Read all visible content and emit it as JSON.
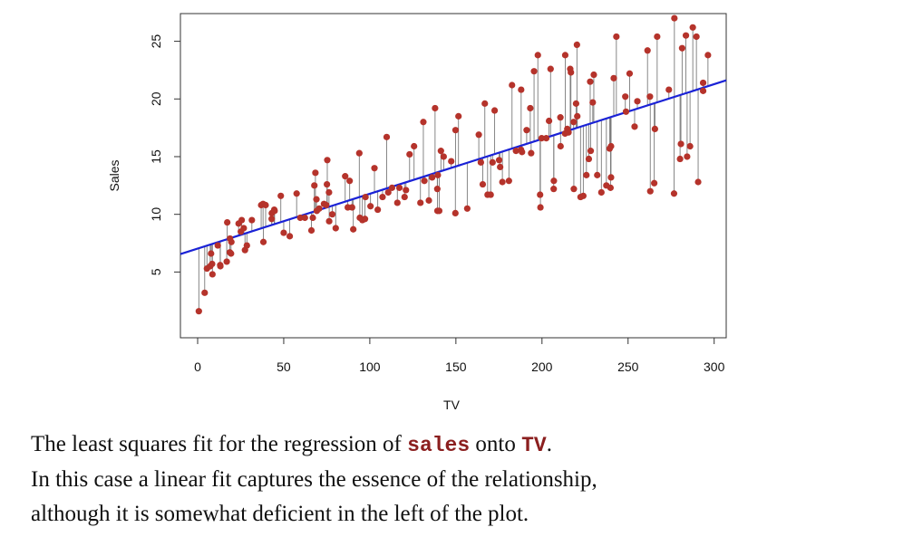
{
  "chart_data": {
    "type": "scatter",
    "title": "",
    "xlabel": "TV",
    "ylabel": "Sales",
    "xlim": [
      -10,
      307
    ],
    "ylim": [
      -0.7,
      27.4
    ],
    "xticks": [
      0,
      50,
      100,
      150,
      200,
      250,
      300
    ],
    "yticks": [
      5,
      10,
      15,
      20,
      25
    ],
    "grid": false,
    "legend": "none",
    "point_color": "#b5332b",
    "residual_color": "#7a7a7a",
    "fit_color": "#1a22d6",
    "fit_line": {
      "intercept": 7.03,
      "slope": 0.0475
    },
    "points": [
      [
        0.7,
        1.6
      ],
      [
        4.1,
        3.2
      ],
      [
        5.4,
        5.3
      ],
      [
        7.3,
        5.5
      ],
      [
        8.4,
        5.7
      ],
      [
        7.8,
        6.6
      ],
      [
        8.6,
        4.8
      ],
      [
        11.7,
        7.3
      ],
      [
        13.1,
        5.6
      ],
      [
        13.2,
        5.5
      ],
      [
        16.9,
        5.9
      ],
      [
        17.2,
        9.3
      ],
      [
        18.7,
        6.7
      ],
      [
        18.8,
        7.9
      ],
      [
        19.4,
        6.6
      ],
      [
        19.6,
        7.6
      ],
      [
        23.8,
        9.2
      ],
      [
        25.1,
        8.5
      ],
      [
        25.6,
        9.5
      ],
      [
        26.8,
        8.8
      ],
      [
        27.5,
        6.9
      ],
      [
        28.6,
        7.3
      ],
      [
        31.5,
        9.5
      ],
      [
        36.9,
        10.8
      ],
      [
        38.0,
        10.9
      ],
      [
        38.2,
        7.6
      ],
      [
        39.5,
        10.8
      ],
      [
        43.0,
        9.6
      ],
      [
        43.1,
        10.1
      ],
      [
        44.5,
        10.4
      ],
      [
        44.7,
        10.3
      ],
      [
        48.3,
        11.6
      ],
      [
        50.0,
        8.4
      ],
      [
        53.5,
        8.1
      ],
      [
        57.5,
        11.8
      ],
      [
        59.6,
        9.7
      ],
      [
        62.3,
        9.7
      ],
      [
        66.1,
        8.6
      ],
      [
        66.9,
        9.7
      ],
      [
        67.8,
        12.5
      ],
      [
        68.4,
        13.6
      ],
      [
        69.0,
        11.3
      ],
      [
        69.2,
        10.3
      ],
      [
        70.6,
        10.5
      ],
      [
        73.4,
        10.9
      ],
      [
        74.7,
        10.8
      ],
      [
        75.1,
        12.6
      ],
      [
        75.3,
        14.7
      ],
      [
        76.3,
        11.9
      ],
      [
        76.4,
        9.4
      ],
      [
        78.2,
        10.0
      ],
      [
        80.2,
        8.8
      ],
      [
        85.7,
        13.3
      ],
      [
        87.2,
        10.6
      ],
      [
        88.3,
        12.9
      ],
      [
        89.7,
        10.6
      ],
      [
        90.4,
        8.7
      ],
      [
        93.9,
        15.3
      ],
      [
        94.2,
        9.7
      ],
      [
        95.7,
        9.5
      ],
      [
        97.2,
        9.6
      ],
      [
        97.5,
        11.5
      ],
      [
        100.4,
        10.7
      ],
      [
        102.7,
        14.0
      ],
      [
        104.6,
        10.4
      ],
      [
        107.4,
        11.5
      ],
      [
        109.8,
        16.7
      ],
      [
        110.7,
        11.9
      ],
      [
        112.9,
        12.3
      ],
      [
        116.0,
        11.0
      ],
      [
        117.2,
        12.3
      ],
      [
        120.2,
        11.5
      ],
      [
        121.0,
        12.1
      ],
      [
        123.1,
        15.2
      ],
      [
        125.7,
        15.9
      ],
      [
        129.4,
        11.0
      ],
      [
        131.1,
        18.0
      ],
      [
        131.7,
        12.9
      ],
      [
        134.3,
        11.2
      ],
      [
        136.2,
        13.2
      ],
      [
        137.9,
        19.2
      ],
      [
        139.2,
        12.2
      ],
      [
        139.3,
        10.3
      ],
      [
        139.5,
        13.4
      ],
      [
        140.3,
        10.3
      ],
      [
        141.3,
        15.5
      ],
      [
        142.9,
        15.0
      ],
      [
        147.3,
        14.6
      ],
      [
        149.7,
        10.1
      ],
      [
        149.8,
        17.3
      ],
      [
        151.5,
        18.5
      ],
      [
        156.6,
        10.5
      ],
      [
        163.3,
        16.9
      ],
      [
        164.5,
        14.5
      ],
      [
        165.6,
        12.6
      ],
      [
        166.8,
        19.6
      ],
      [
        168.4,
        11.7
      ],
      [
        170.2,
        11.7
      ],
      [
        171.3,
        14.5
      ],
      [
        172.5,
        19.0
      ],
      [
        175.1,
        14.7
      ],
      [
        175.7,
        14.1
      ],
      [
        177.0,
        12.8
      ],
      [
        180.8,
        12.9
      ],
      [
        182.6,
        21.2
      ],
      [
        184.9,
        15.5
      ],
      [
        187.8,
        15.6
      ],
      [
        187.9,
        20.8
      ],
      [
        188.4,
        15.4
      ],
      [
        191.1,
        17.3
      ],
      [
        193.2,
        19.2
      ],
      [
        193.7,
        15.3
      ],
      [
        195.4,
        22.4
      ],
      [
        197.6,
        23.8
      ],
      [
        198.9,
        11.7
      ],
      [
        199.1,
        10.6
      ],
      [
        199.8,
        16.6
      ],
      [
        202.5,
        16.6
      ],
      [
        204.1,
        18.1
      ],
      [
        205.0,
        22.6
      ],
      [
        206.8,
        12.2
      ],
      [
        206.9,
        12.9
      ],
      [
        210.7,
        18.4
      ],
      [
        210.8,
        15.9
      ],
      [
        213.4,
        17.0
      ],
      [
        213.5,
        23.8
      ],
      [
        214.7,
        17.4
      ],
      [
        215.4,
        17.1
      ],
      [
        216.4,
        22.6
      ],
      [
        216.8,
        22.3
      ],
      [
        218.4,
        18.0
      ],
      [
        218.5,
        12.2
      ],
      [
        219.8,
        19.6
      ],
      [
        220.3,
        24.7
      ],
      [
        220.5,
        18.5
      ],
      [
        222.4,
        11.5
      ],
      [
        224.0,
        11.6
      ],
      [
        225.8,
        13.4
      ],
      [
        227.2,
        14.8
      ],
      [
        228.0,
        21.5
      ],
      [
        228.3,
        15.5
      ],
      [
        229.5,
        19.7
      ],
      [
        230.1,
        22.1
      ],
      [
        232.1,
        13.4
      ],
      [
        234.5,
        11.9
      ],
      [
        237.4,
        12.5
      ],
      [
        239.3,
        15.7
      ],
      [
        239.8,
        12.3
      ],
      [
        240.1,
        13.2
      ],
      [
        240.1,
        15.9
      ],
      [
        241.7,
        21.8
      ],
      [
        243.2,
        25.4
      ],
      [
        248.4,
        20.2
      ],
      [
        248.8,
        18.9
      ],
      [
        250.9,
        22.2
      ],
      [
        253.8,
        17.6
      ],
      [
        255.4,
        19.8
      ],
      [
        261.3,
        24.2
      ],
      [
        262.7,
        20.2
      ],
      [
        262.9,
        12.0
      ],
      [
        265.2,
        12.7
      ],
      [
        265.6,
        17.4
      ],
      [
        266.9,
        25.4
      ],
      [
        273.7,
        20.8
      ],
      [
        276.7,
        11.8
      ],
      [
        276.9,
        27.0
      ],
      [
        280.2,
        14.8
      ],
      [
        280.7,
        16.1
      ],
      [
        281.4,
        24.4
      ],
      [
        283.6,
        25.5
      ],
      [
        284.3,
        15.0
      ],
      [
        286.0,
        15.9
      ],
      [
        287.6,
        26.2
      ],
      [
        289.7,
        25.4
      ],
      [
        290.7,
        12.8
      ],
      [
        293.6,
        20.7
      ],
      [
        293.6,
        21.4
      ],
      [
        296.4,
        23.8
      ]
    ]
  },
  "caption": {
    "line1_before": "The least squares fit for the regression of ",
    "line1_code1": "sales",
    "line1_mid": " onto ",
    "line1_code2": "TV",
    "line1_after": ".",
    "line2": "In this case a linear fit captures the essence of the relationship,",
    "line3": "although it is somewhat deficient in the left of the plot."
  }
}
